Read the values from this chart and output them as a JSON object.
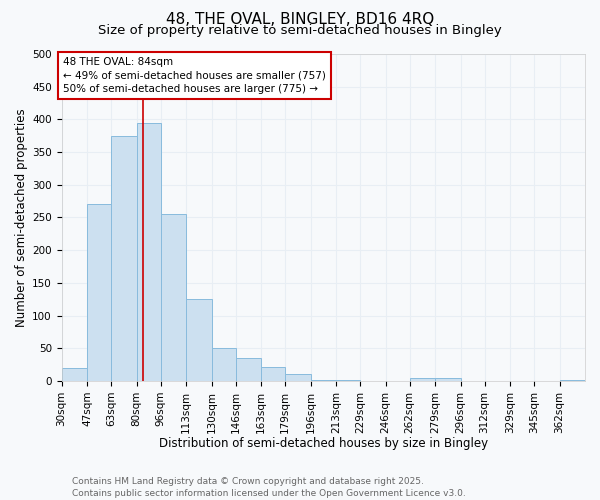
{
  "title": "48, THE OVAL, BINGLEY, BD16 4RQ",
  "subtitle": "Size of property relative to semi-detached houses in Bingley",
  "xlabel": "Distribution of semi-detached houses by size in Bingley",
  "ylabel": "Number of semi-detached properties",
  "categories": [
    "30sqm",
    "47sqm",
    "63sqm",
    "80sqm",
    "96sqm",
    "113sqm",
    "130sqm",
    "146sqm",
    "163sqm",
    "179sqm",
    "196sqm",
    "213sqm",
    "229sqm",
    "246sqm",
    "262sqm",
    "279sqm",
    "296sqm",
    "312sqm",
    "329sqm",
    "345sqm",
    "362sqm"
  ],
  "bin_edges": [
    30,
    47,
    63,
    80,
    96,
    113,
    130,
    146,
    163,
    179,
    196,
    213,
    229,
    246,
    262,
    279,
    296,
    312,
    329,
    345,
    362,
    379
  ],
  "values": [
    20,
    270,
    375,
    395,
    255,
    125,
    50,
    35,
    22,
    10,
    2,
    2,
    0,
    0,
    5,
    5,
    0,
    0,
    0,
    0,
    2
  ],
  "bar_color": "#cce0f0",
  "bar_edge_color": "#88bbdd",
  "property_size": 84,
  "property_line_color": "#cc0000",
  "legend_text_line1": "48 THE OVAL: 84sqm",
  "legend_text_line2": "← 49% of semi-detached houses are smaller (757)",
  "legend_text_line3": "50% of semi-detached houses are larger (775) →",
  "legend_box_color": "#ffffff",
  "legend_box_edge": "#cc0000",
  "ylim": [
    0,
    500
  ],
  "yticks": [
    0,
    50,
    100,
    150,
    200,
    250,
    300,
    350,
    400,
    450,
    500
  ],
  "background_color": "#f7f9fb",
  "grid_color": "#e8eef4",
  "footer_line1": "Contains HM Land Registry data © Crown copyright and database right 2025.",
  "footer_line2": "Contains public sector information licensed under the Open Government Licence v3.0.",
  "title_fontsize": 11,
  "subtitle_fontsize": 9.5,
  "axis_label_fontsize": 8.5,
  "tick_fontsize": 7.5,
  "legend_fontsize": 7.5,
  "footer_fontsize": 6.5
}
